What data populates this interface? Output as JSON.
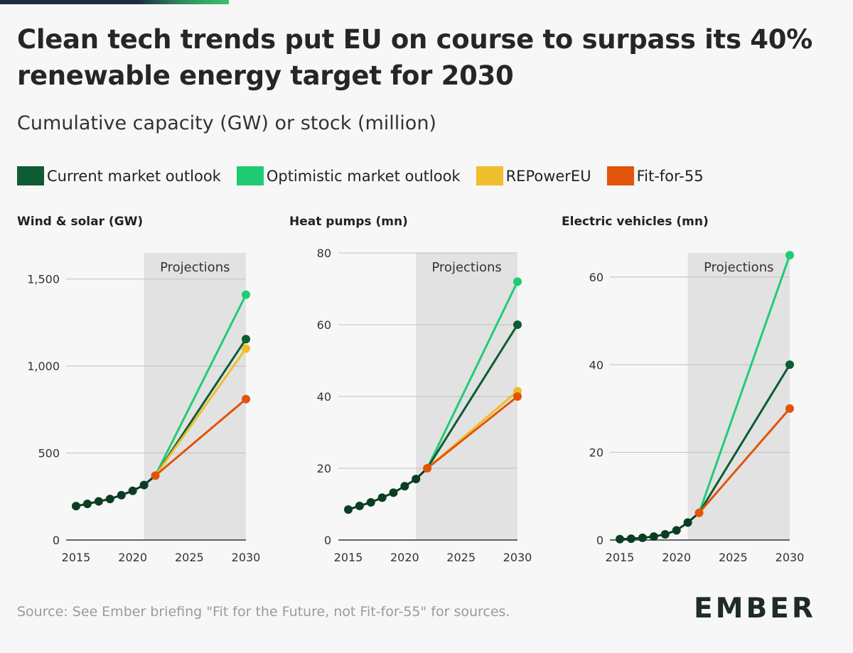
{
  "title": "Clean tech trends put EU on course to surpass its 40% renewable energy target for 2030",
  "subtitle": "Cumulative capacity (GW) or stock (million)",
  "legend": [
    {
      "label": "Current market outlook",
      "color": "#0d5c33"
    },
    {
      "label": "Optimistic market outlook",
      "color": "#1fcc74"
    },
    {
      "label": "REPowerEU",
      "color": "#efbe2c"
    },
    {
      "label": "Fit-for-55",
      "color": "#e1540a"
    }
  ],
  "footer": "Source: See Ember briefing \"Fit for the Future, not Fit-for-55\" for sources.",
  "logo": "EMBER",
  "chart_data": [
    {
      "type": "line",
      "title": "Wind & solar (GW)",
      "projection_label": "Projections",
      "projection_start": 2021,
      "xlim": [
        2015,
        2030
      ],
      "ylim": [
        0,
        1500
      ],
      "xticks": [
        2015,
        2020,
        2025,
        2030
      ],
      "xtick_labels": [
        "2015",
        "2020",
        "2025",
        "2030"
      ],
      "yticks": [
        0,
        500,
        1000,
        1500
      ],
      "ytick_labels": [
        "0",
        "500",
        "1,000",
        "1,500"
      ],
      "historical": {
        "x": [
          2015,
          2016,
          2017,
          2018,
          2019,
          2020,
          2021,
          2022
        ],
        "y": [
          195,
          208,
          222,
          236,
          258,
          283,
          316,
          370
        ]
      },
      "series": [
        {
          "name": "Current market outlook",
          "x": [
            2022,
            2030
          ],
          "y": [
            370,
            1155
          ]
        },
        {
          "name": "Optimistic market outlook",
          "x": [
            2022,
            2030
          ],
          "y": [
            370,
            1410
          ]
        },
        {
          "name": "REPowerEU",
          "x": [
            2022,
            2030
          ],
          "y": [
            370,
            1100
          ]
        },
        {
          "name": "Fit-for-55",
          "x": [
            2022,
            2030
          ],
          "y": [
            370,
            810
          ]
        }
      ]
    },
    {
      "type": "line",
      "title": "Heat pumps (mn)",
      "projection_label": "Projections",
      "projection_start": 2021,
      "xlim": [
        2015,
        2030
      ],
      "ylim": [
        0,
        80
      ],
      "xticks": [
        2015,
        2020,
        2025,
        2030
      ],
      "xtick_labels": [
        "2015",
        "2020",
        "2025",
        "2030"
      ],
      "yticks": [
        0,
        20,
        40,
        60,
        80
      ],
      "ytick_labels": [
        "0",
        "20",
        "40",
        "60",
        "80"
      ],
      "historical": {
        "x": [
          2015,
          2016,
          2017,
          2018,
          2019,
          2020,
          2021,
          2022
        ],
        "y": [
          8.5,
          9.5,
          10.5,
          11.8,
          13.2,
          15.0,
          17.0,
          20.0
        ]
      },
      "series": [
        {
          "name": "Current market outlook",
          "x": [
            2022,
            2030
          ],
          "y": [
            20,
            60
          ]
        },
        {
          "name": "Optimistic market outlook",
          "x": [
            2022,
            2030
          ],
          "y": [
            20,
            72
          ]
        },
        {
          "name": "REPowerEU",
          "x": [
            2022,
            2030
          ],
          "y": [
            20,
            41.5
          ]
        },
        {
          "name": "Fit-for-55",
          "x": [
            2022,
            2030
          ],
          "y": [
            20,
            40
          ]
        }
      ]
    },
    {
      "type": "line",
      "title": "Electric vehicles (mn)",
      "projection_label": "Projections",
      "projection_start": 2021,
      "xlim": [
        2015,
        2030
      ],
      "ylim": [
        0,
        60
      ],
      "xticks": [
        2015,
        2020,
        2025,
        2030
      ],
      "xtick_labels": [
        "2015",
        "2020",
        "2025",
        "2030"
      ],
      "yticks": [
        0,
        20,
        40,
        60
      ],
      "ytick_labels": [
        "0",
        "20",
        "40",
        "60"
      ],
      "historical": {
        "x": [
          2015,
          2016,
          2017,
          2018,
          2019,
          2020,
          2021,
          2022
        ],
        "y": [
          0.2,
          0.3,
          0.5,
          0.8,
          1.3,
          2.2,
          4.0,
          6.2
        ]
      },
      "series": [
        {
          "name": "Current market outlook",
          "x": [
            2022,
            2030
          ],
          "y": [
            6.2,
            40
          ]
        },
        {
          "name": "Optimistic market outlook",
          "x": [
            2022,
            2030
          ],
          "y": [
            6.2,
            65
          ]
        },
        {
          "name": "Fit-for-55",
          "x": [
            2022,
            2030
          ],
          "y": [
            6.2,
            30
          ]
        }
      ]
    }
  ]
}
